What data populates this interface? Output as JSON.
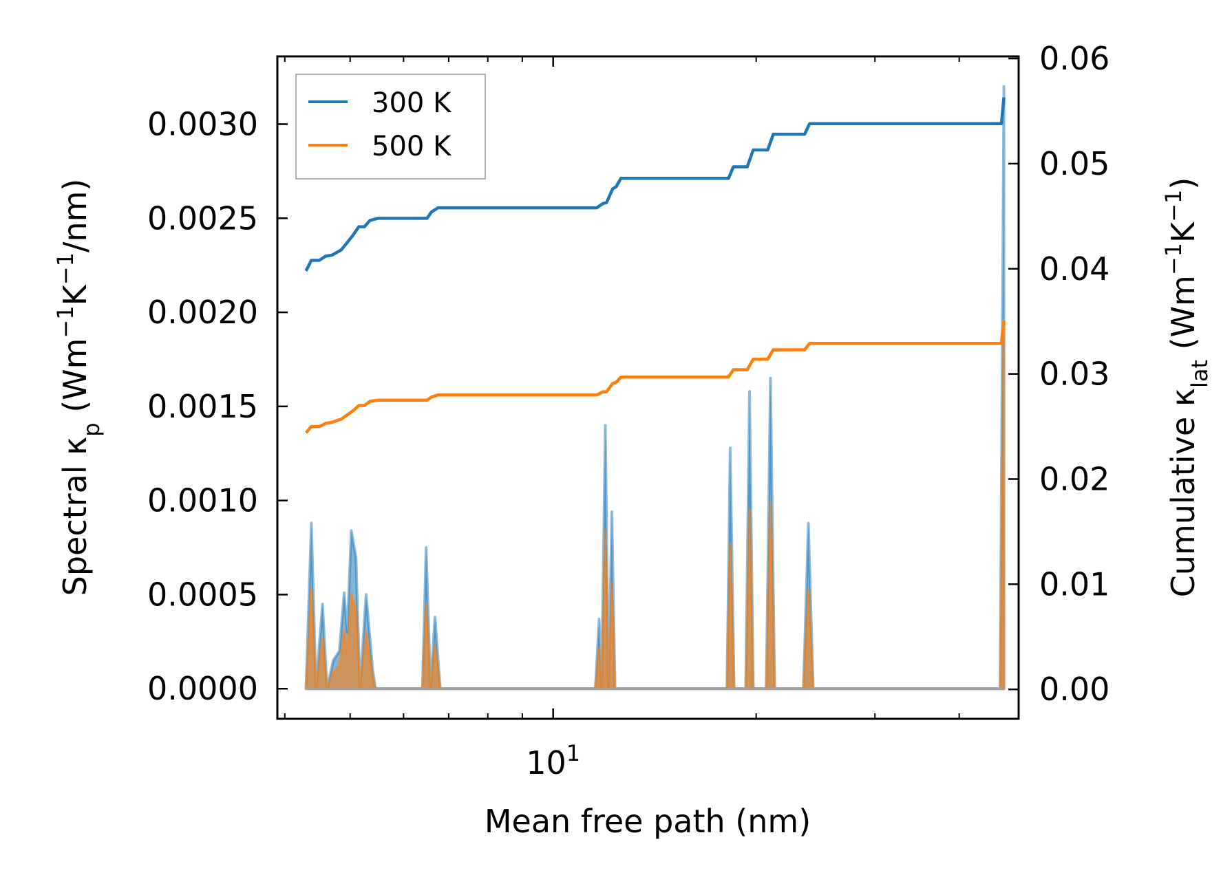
{
  "colors": {
    "t300": "#1f77b4",
    "t500": "#ff7f0e",
    "frame": "#000000",
    "legend_border": "#999999"
  },
  "chart_data": {
    "type": "line",
    "xscale": "log",
    "xlabel": "Mean free path (nm)",
    "ylabel_left": "Spectral κp (Wm−1K−1/nm)",
    "ylabel_right": "Cumulative κlat (Wm−1K−1)",
    "xlim": [
      3.9,
      49
    ],
    "ylim_left": [
      -0.00016,
      0.00336
    ],
    "ylim_right": [
      -0.0028,
      0.0602
    ],
    "x_ticks_major": [
      {
        "value": 10,
        "label": "10",
        "sup": "1"
      }
    ],
    "y_ticks_left": [
      {
        "value": 0.0,
        "label": "0.0000"
      },
      {
        "value": 0.0005,
        "label": "0.0005"
      },
      {
        "value": 0.001,
        "label": "0.0010"
      },
      {
        "value": 0.0015,
        "label": "0.0015"
      },
      {
        "value": 0.002,
        "label": "0.0020"
      },
      {
        "value": 0.0025,
        "label": "0.0025"
      },
      {
        "value": 0.003,
        "label": "0.0030"
      }
    ],
    "y_ticks_right": [
      {
        "value": 0.0,
        "label": "0.00"
      },
      {
        "value": 0.01,
        "label": "0.01"
      },
      {
        "value": 0.02,
        "label": "0.02"
      },
      {
        "value": 0.03,
        "label": "0.03"
      },
      {
        "value": 0.04,
        "label": "0.04"
      },
      {
        "value": 0.05,
        "label": "0.05"
      },
      {
        "value": 0.06,
        "label": "0.06"
      }
    ],
    "legend": {
      "position": "upper-left",
      "entries": [
        "300 K",
        "500 K"
      ]
    },
    "grid": false,
    "series": [
      {
        "name": "300 K",
        "axis": "right",
        "kind": "cumulative",
        "points": [
          [
            4.3,
            0.0398
          ],
          [
            4.38,
            0.0408
          ],
          [
            4.5,
            0.0408
          ],
          [
            4.6,
            0.0412
          ],
          [
            4.7,
            0.0413
          ],
          [
            4.85,
            0.0418
          ],
          [
            4.95,
            0.0425
          ],
          [
            5.05,
            0.0432
          ],
          [
            5.15,
            0.044
          ],
          [
            5.25,
            0.044
          ],
          [
            5.35,
            0.0446
          ],
          [
            5.5,
            0.0448
          ],
          [
            6.5,
            0.0448
          ],
          [
            6.6,
            0.0454
          ],
          [
            6.75,
            0.0458
          ],
          [
            7.0,
            0.0458
          ],
          [
            11.6,
            0.0458
          ],
          [
            11.85,
            0.0462
          ],
          [
            12.0,
            0.0463
          ],
          [
            12.25,
            0.0476
          ],
          [
            12.4,
            0.0478
          ],
          [
            12.6,
            0.0486
          ],
          [
            13.1,
            0.0486
          ],
          [
            18.2,
            0.0486
          ],
          [
            18.5,
            0.0497
          ],
          [
            19.4,
            0.0497
          ],
          [
            19.8,
            0.0513
          ],
          [
            20.8,
            0.0513
          ],
          [
            21.2,
            0.0528
          ],
          [
            23.6,
            0.0528
          ],
          [
            24.0,
            0.0538
          ],
          [
            46.2,
            0.0538
          ],
          [
            46.6,
            0.0563
          ]
        ]
      },
      {
        "name": "500 K",
        "axis": "right",
        "kind": "cumulative",
        "points": [
          [
            4.3,
            0.0244
          ],
          [
            4.38,
            0.025
          ],
          [
            4.5,
            0.025
          ],
          [
            4.6,
            0.0253
          ],
          [
            4.7,
            0.0254
          ],
          [
            4.85,
            0.0257
          ],
          [
            4.95,
            0.0261
          ],
          [
            5.05,
            0.0265
          ],
          [
            5.15,
            0.027
          ],
          [
            5.25,
            0.027
          ],
          [
            5.35,
            0.0274
          ],
          [
            5.5,
            0.0275
          ],
          [
            6.5,
            0.0275
          ],
          [
            6.6,
            0.0278
          ],
          [
            6.75,
            0.028
          ],
          [
            7.0,
            0.028
          ],
          [
            11.6,
            0.028
          ],
          [
            11.85,
            0.0283
          ],
          [
            12.0,
            0.0283
          ],
          [
            12.25,
            0.0291
          ],
          [
            12.4,
            0.0292
          ],
          [
            12.6,
            0.0297
          ],
          [
            13.1,
            0.0297
          ],
          [
            18.2,
            0.0297
          ],
          [
            18.5,
            0.0304
          ],
          [
            19.4,
            0.0304
          ],
          [
            19.8,
            0.0314
          ],
          [
            20.8,
            0.0314
          ],
          [
            21.2,
            0.0323
          ],
          [
            23.6,
            0.0323
          ],
          [
            24.0,
            0.0329
          ],
          [
            46.2,
            0.0329
          ],
          [
            46.6,
            0.0351
          ]
        ]
      },
      {
        "name": "300 K spectral",
        "axis": "left",
        "kind": "spectral",
        "points": [
          [
            4.3,
            0
          ],
          [
            4.38,
            0.00088
          ],
          [
            4.45,
            0
          ],
          [
            4.55,
            0.00045
          ],
          [
            4.62,
            0
          ],
          [
            4.72,
            0.00015
          ],
          [
            4.82,
            0.0002
          ],
          [
            4.9,
            0.00051
          ],
          [
            4.95,
            0.0003
          ],
          [
            5.02,
            0.00084
          ],
          [
            5.1,
            0.0007
          ],
          [
            5.17,
            0
          ],
          [
            5.28,
            0.0005
          ],
          [
            5.4,
            0.0001
          ],
          [
            5.45,
            0
          ],
          [
            6.4,
            0
          ],
          [
            6.48,
            0.00075
          ],
          [
            6.58,
            0
          ],
          [
            6.68,
            0.00038
          ],
          [
            6.8,
            0
          ],
          [
            11.55,
            0
          ],
          [
            11.7,
            0.00037
          ],
          [
            11.8,
            0
          ],
          [
            11.95,
            0.0014
          ],
          [
            12.08,
            0
          ],
          [
            12.22,
            0.00094
          ],
          [
            12.35,
            0
          ],
          [
            18.1,
            0
          ],
          [
            18.3,
            0.00128
          ],
          [
            18.55,
            0
          ],
          [
            19.3,
            0
          ],
          [
            19.55,
            0.00158
          ],
          [
            19.8,
            0
          ],
          [
            20.7,
            0
          ],
          [
            21.0,
            0.00165
          ],
          [
            21.3,
            0
          ],
          [
            23.5,
            0
          ],
          [
            23.9,
            0.00088
          ],
          [
            24.3,
            0
          ],
          [
            46.0,
            0
          ],
          [
            46.6,
            0.0032
          ]
        ]
      },
      {
        "name": "500 K spectral",
        "axis": "left",
        "kind": "spectral",
        "points": [
          [
            4.3,
            0
          ],
          [
            4.38,
            0.00053
          ],
          [
            4.45,
            0
          ],
          [
            4.55,
            0.00027
          ],
          [
            4.62,
            0
          ],
          [
            4.72,
            9e-05
          ],
          [
            4.82,
            0.00012
          ],
          [
            4.9,
            0.00031
          ],
          [
            4.95,
            0.00018
          ],
          [
            5.02,
            0.0005
          ],
          [
            5.1,
            0.00042
          ],
          [
            5.17,
            0
          ],
          [
            5.28,
            0.0003
          ],
          [
            5.4,
            6e-05
          ],
          [
            5.45,
            0
          ],
          [
            6.4,
            0
          ],
          [
            6.48,
            0.00045
          ],
          [
            6.58,
            0
          ],
          [
            6.68,
            0.00023
          ],
          [
            6.8,
            0
          ],
          [
            11.55,
            0
          ],
          [
            11.7,
            0.00022
          ],
          [
            11.8,
            0
          ],
          [
            11.95,
            0.00084
          ],
          [
            12.08,
            0
          ],
          [
            12.22,
            0.00056
          ],
          [
            12.35,
            0
          ],
          [
            18.1,
            0
          ],
          [
            18.3,
            0.00077
          ],
          [
            18.55,
            0
          ],
          [
            19.3,
            0
          ],
          [
            19.55,
            0.00095
          ],
          [
            19.8,
            0
          ],
          [
            20.7,
            0
          ],
          [
            21.0,
            0.00099
          ],
          [
            21.3,
            0
          ],
          [
            23.5,
            0
          ],
          [
            23.9,
            0.00053
          ],
          [
            24.3,
            0
          ],
          [
            46.0,
            0
          ],
          [
            46.6,
            0.00195
          ]
        ]
      }
    ]
  }
}
